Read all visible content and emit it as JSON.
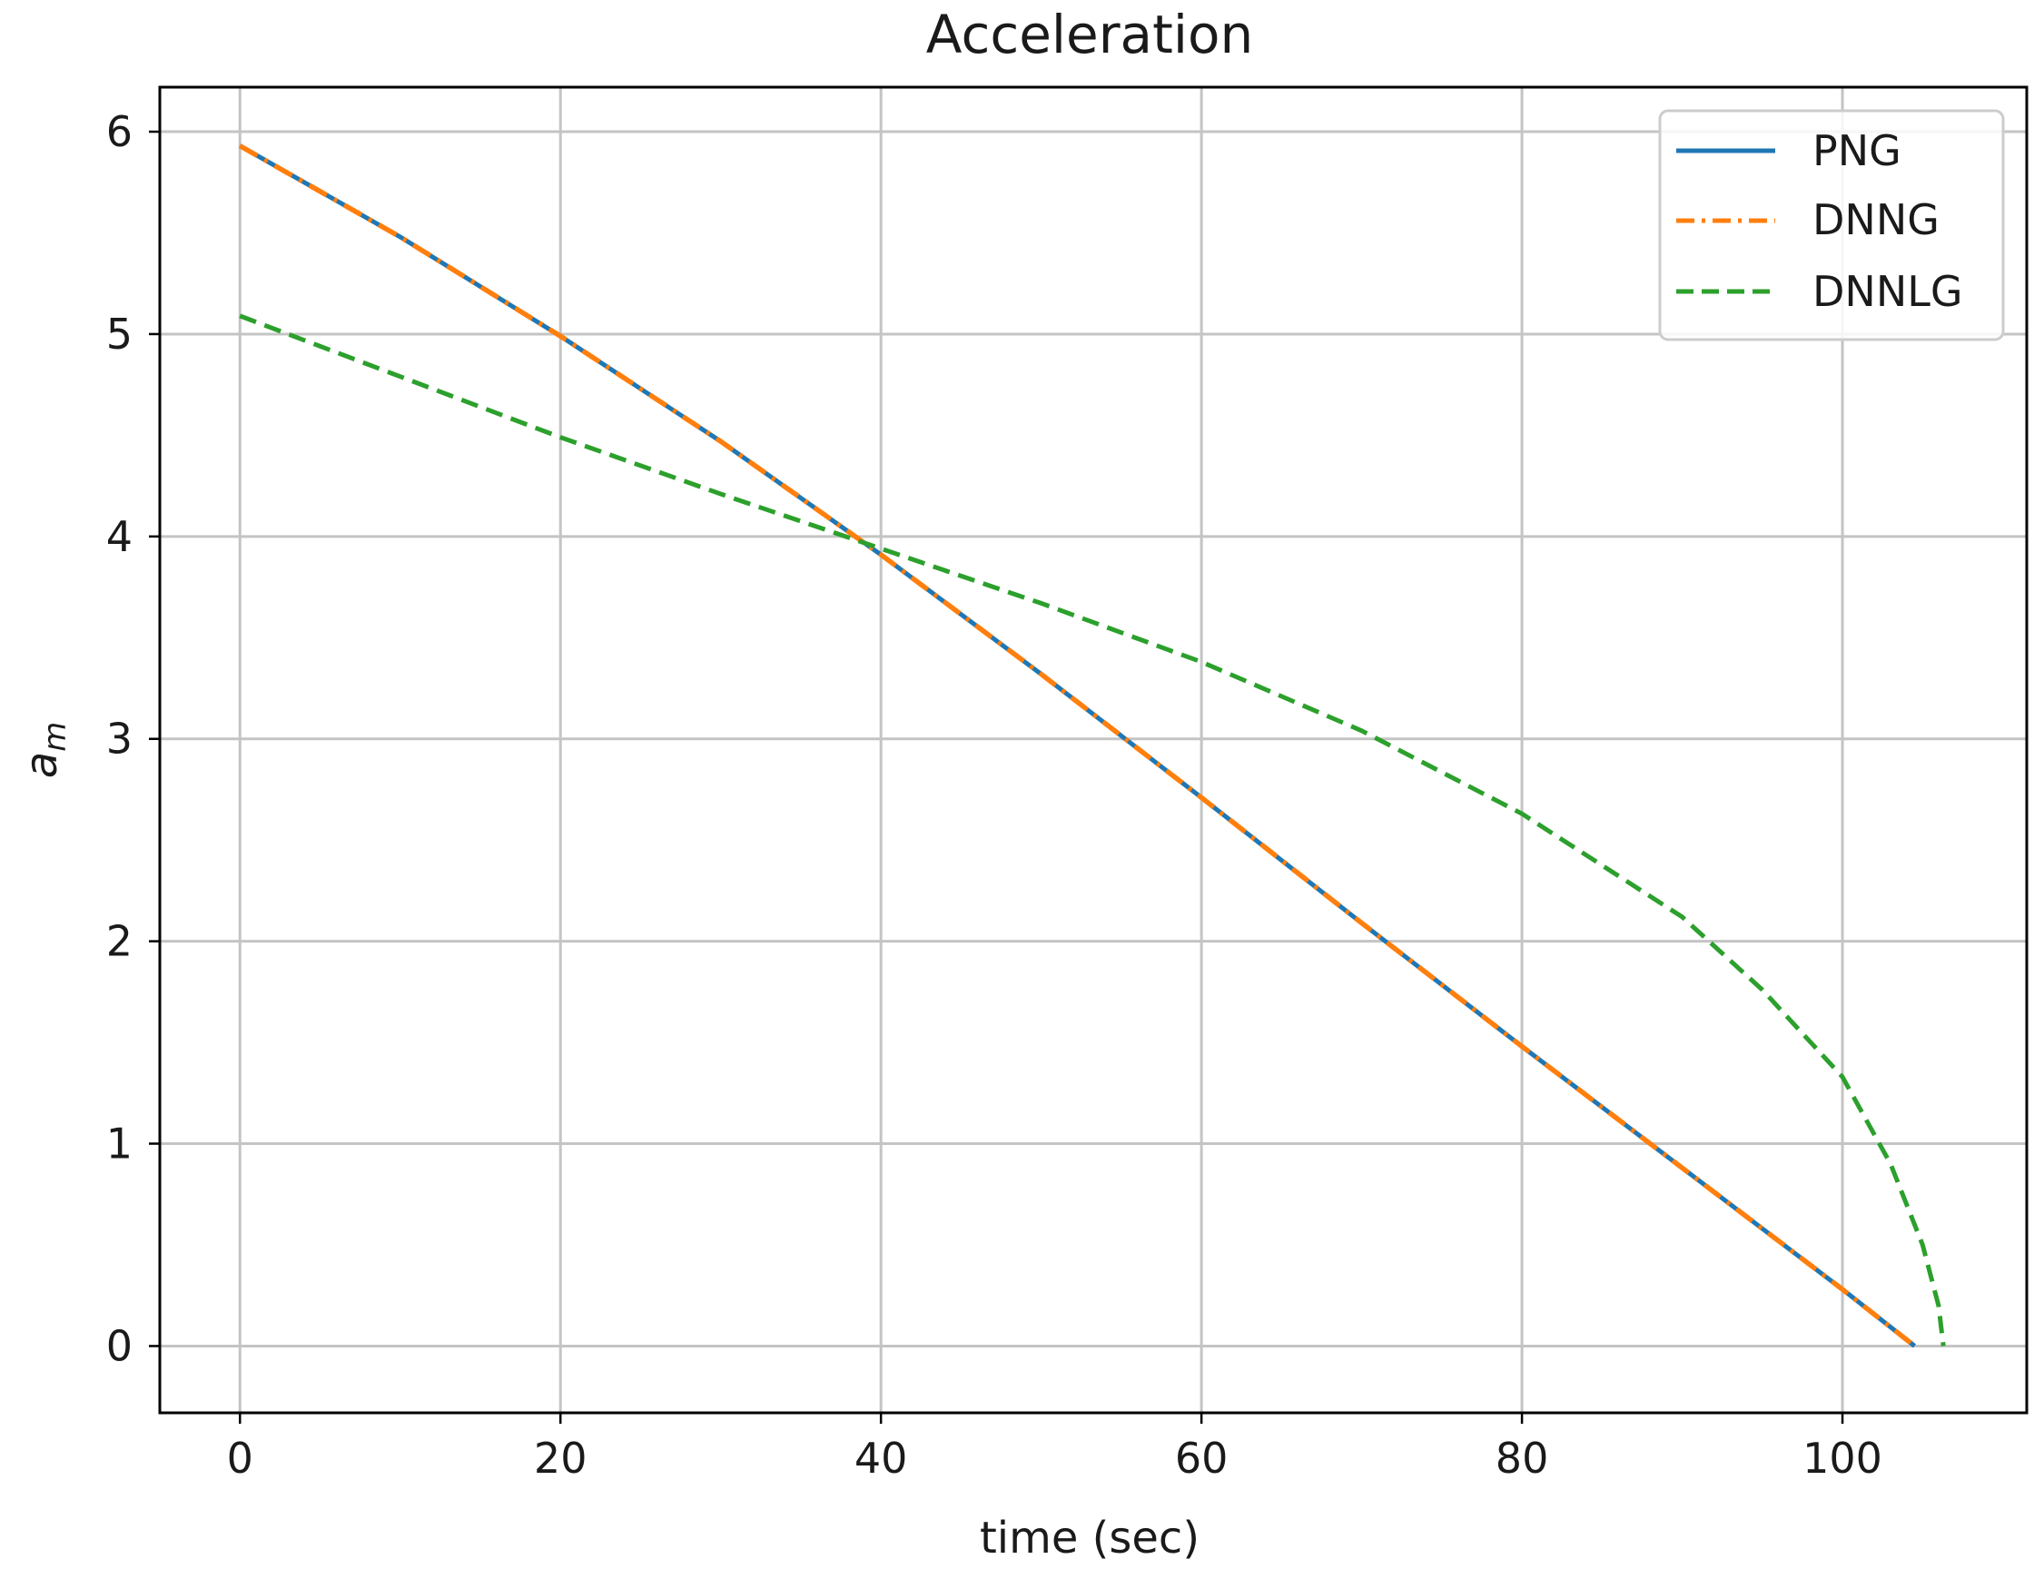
{
  "chart_data": {
    "type": "line",
    "title": "Acceleration",
    "xlabel": "time (sec)",
    "ylabel_main": "a",
    "ylabel_sub": "m",
    "xlim": [
      -5,
      111.5
    ],
    "ylim": [
      -0.33,
      6.22
    ],
    "xticks": [
      0,
      20,
      40,
      60,
      80,
      100
    ],
    "yticks": [
      0,
      1,
      2,
      3,
      4,
      5,
      6
    ],
    "grid": true,
    "legend_position": "top-right",
    "series": [
      {
        "name": "PNG",
        "color": "#1f77b4",
        "style": "solid",
        "x": [
          0,
          10,
          20,
          30,
          40,
          50,
          60,
          70,
          80,
          90,
          100,
          104.5
        ],
        "y": [
          5.93,
          5.48,
          4.99,
          4.47,
          3.91,
          3.32,
          2.71,
          2.09,
          1.48,
          0.88,
          0.28,
          0.0
        ]
      },
      {
        "name": "DNNG",
        "color": "#ff7f0e",
        "style": "dashdot",
        "x": [
          0,
          10,
          20,
          30,
          40,
          50,
          60,
          70,
          80,
          90,
          100,
          104.5
        ],
        "y": [
          5.93,
          5.48,
          4.99,
          4.47,
          3.91,
          3.32,
          2.71,
          2.09,
          1.48,
          0.88,
          0.28,
          0.0
        ]
      },
      {
        "name": "DNNLG",
        "color": "#2ca02c",
        "style": "dashed",
        "x": [
          0,
          10,
          20,
          30,
          40,
          50,
          60,
          70,
          80,
          90,
          95,
          100,
          103,
          105,
          106,
          106.3
        ],
        "y": [
          5.09,
          4.79,
          4.49,
          4.21,
          3.94,
          3.67,
          3.38,
          3.04,
          2.63,
          2.12,
          1.76,
          1.33,
          0.9,
          0.5,
          0.2,
          0.0
        ]
      }
    ]
  }
}
